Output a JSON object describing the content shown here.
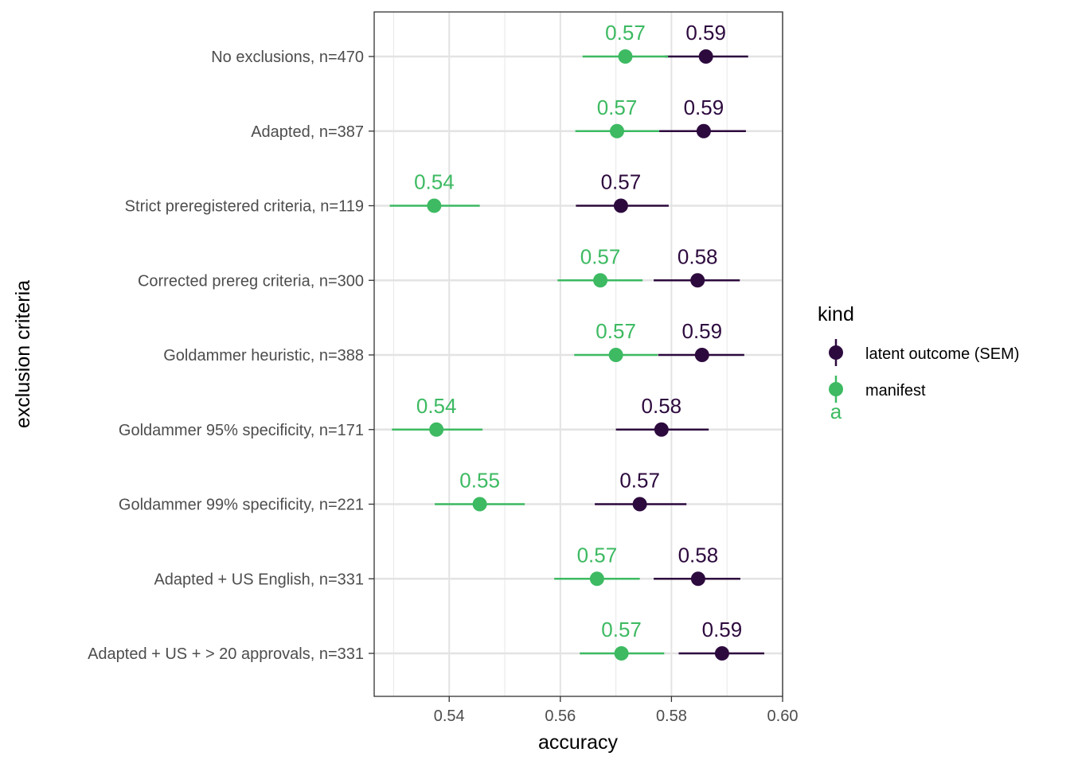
{
  "chart_data": {
    "type": "scatter",
    "subtype": "point-range",
    "xlabel": "accuracy",
    "ylabel": "exclusion criteria",
    "xlim": [
      0.5265,
      0.6
    ],
    "x_ticks": [
      0.54,
      0.56,
      0.58,
      0.6
    ],
    "x_tick_labels": [
      "0.54",
      "0.56",
      "0.58",
      "0.60"
    ],
    "grid": true,
    "categories": [
      "No exclusions, n=470",
      "Adapted, n=387",
      "Strict preregistered criteria, n=119",
      "Corrected prereg criteria, n=300",
      "Goldammer heuristic, n=388",
      "Goldammer 95% specificity, n=171",
      "Goldammer 99% specificity, n=221",
      "Adapted + US English, n=331",
      "Adapted + US + > 20 approvals, n=331"
    ],
    "series": [
      {
        "name": "latent outcome (SEM)",
        "color": "#2d0a3e",
        "values": [
          0.5862,
          0.5858,
          0.5709,
          0.5847,
          0.5855,
          0.5782,
          0.5743,
          0.5848,
          0.5891
        ],
        "lower": [
          0.5788,
          0.5778,
          0.5628,
          0.5768,
          0.5776,
          0.57,
          0.5662,
          0.5768,
          0.5813
        ],
        "upper": [
          0.5938,
          0.5934,
          0.5795,
          0.5923,
          0.5931,
          0.5867,
          0.5827,
          0.5924,
          0.5967
        ],
        "labels": [
          "0.59",
          "0.59",
          "0.57",
          "0.58",
          "0.59",
          "0.58",
          "0.57",
          "0.58",
          "0.59"
        ]
      },
      {
        "name": "manifest",
        "color": "#3dba62",
        "values": [
          0.5717,
          0.5702,
          0.5373,
          0.5672,
          0.57,
          0.5377,
          0.5455,
          0.5666,
          0.571
        ],
        "lower": [
          0.564,
          0.5627,
          0.5293,
          0.5595,
          0.5625,
          0.5297,
          0.5374,
          0.5589,
          0.5635
        ],
        "upper": [
          0.5794,
          0.5778,
          0.5455,
          0.5748,
          0.5775,
          0.546,
          0.5536,
          0.5743,
          0.5787
        ],
        "labels": [
          "0.57",
          "0.57",
          "0.54",
          "0.57",
          "0.57",
          "0.54",
          "0.55",
          "0.57",
          "0.57"
        ]
      }
    ],
    "legend": {
      "title": "kind",
      "position": "right",
      "key_glyph_text": "a"
    }
  }
}
